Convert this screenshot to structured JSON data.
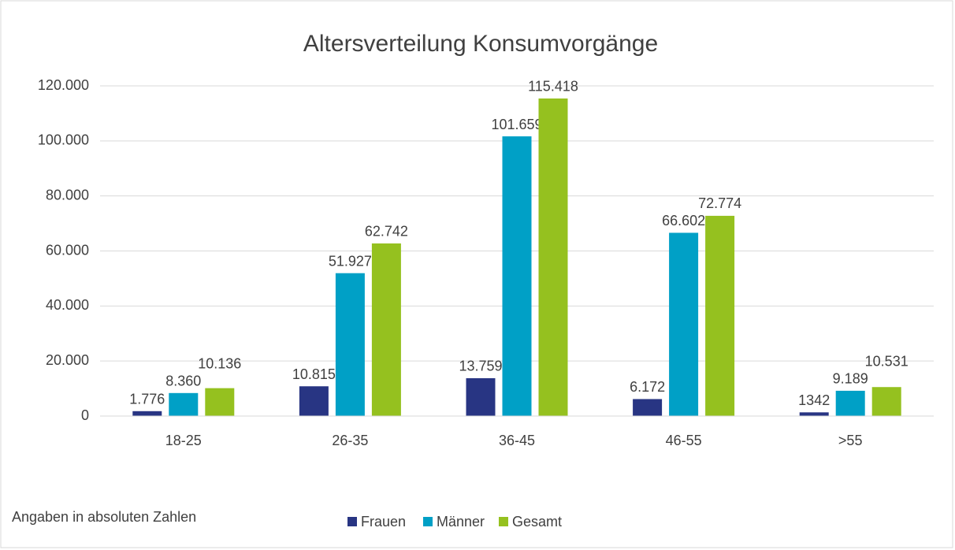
{
  "chart_data": {
    "type": "bar",
    "title": "Altersverteilung Konsumvorgänge",
    "annotation": "Angaben in absoluten Zahlen",
    "categories": [
      "18-25",
      "26-35",
      "36-45",
      "46-55",
      ">55"
    ],
    "series": [
      {
        "name": "Frauen",
        "color": "#283583",
        "values": [
          1776,
          10815,
          13759,
          6172,
          1342
        ],
        "value_labels": [
          "1.776",
          "10.815",
          "13.759",
          "6.172",
          "1342"
        ]
      },
      {
        "name": "Männer",
        "color": "#00a0c6",
        "values": [
          8360,
          51927,
          101659,
          66602,
          9189
        ],
        "value_labels": [
          "8.360",
          "51.927",
          "101.659",
          "66.602",
          "9.189"
        ]
      },
      {
        "name": "Gesamt",
        "color": "#95c11f",
        "values": [
          10136,
          62742,
          115418,
          72774,
          10531
        ],
        "value_labels": [
          "10.136",
          "62.742",
          "115.418",
          "72.774",
          "10.531"
        ]
      }
    ],
    "ylim": [
      0,
      120000
    ],
    "yticks": [
      0,
      {
        "value": 20000,
        "label": "20.000"
      },
      {
        "value": 40000,
        "label": "40.000"
      },
      {
        "value": 60000,
        "label": "60.000"
      },
      {
        "value": 80000,
        "label": "80.000"
      },
      {
        "value": 100000,
        "label": "100.000"
      },
      {
        "value": 120000,
        "label": "120.000"
      }
    ],
    "grid": true,
    "legend": "bottom"
  }
}
